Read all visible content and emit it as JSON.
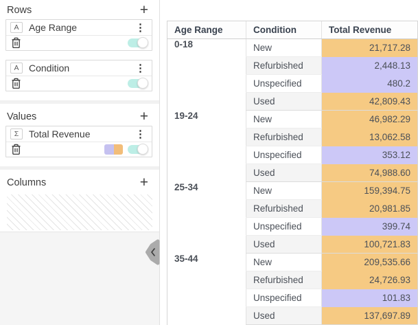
{
  "colors": {
    "orange": "#f6ca83",
    "purple": "#ccc8f7",
    "swatch_purple": "#c5c1f0",
    "swatch_orange": "#f2bd79",
    "toggle_on": "#bdeee6"
  },
  "sidebar": {
    "rows_label": "Rows",
    "values_label": "Values",
    "columns_label": "Columns",
    "add_icon": "+",
    "kebab_icon": "⋮",
    "fields": {
      "age_range": {
        "type_icon": "A",
        "label": "Age Range"
      },
      "condition": {
        "type_icon": "A",
        "label": "Condition"
      },
      "total_revenue": {
        "type_icon": "Σ",
        "label": "Total Revenue"
      }
    }
  },
  "table": {
    "headers": [
      "Age Range",
      "Condition",
      "Total Revenue"
    ],
    "groups": [
      {
        "age_range": "0-18",
        "rows": [
          {
            "condition": "New",
            "value": "21,717.28",
            "color": "orange"
          },
          {
            "condition": "Refurbished",
            "value": "2,448.13",
            "color": "purple"
          },
          {
            "condition": "Unspecified",
            "value": "480.2",
            "color": "purple"
          },
          {
            "condition": "Used",
            "value": "42,809.43",
            "color": "orange"
          }
        ]
      },
      {
        "age_range": "19-24",
        "rows": [
          {
            "condition": "New",
            "value": "46,982.29",
            "color": "orange"
          },
          {
            "condition": "Refurbished",
            "value": "13,062.58",
            "color": "orange"
          },
          {
            "condition": "Unspecified",
            "value": "353.12",
            "color": "purple"
          },
          {
            "condition": "Used",
            "value": "74,988.60",
            "color": "orange"
          }
        ]
      },
      {
        "age_range": "25-34",
        "rows": [
          {
            "condition": "New",
            "value": "159,394.75",
            "color": "orange"
          },
          {
            "condition": "Refurbished",
            "value": "20,981.85",
            "color": "orange"
          },
          {
            "condition": "Unspecified",
            "value": "399.74",
            "color": "purple"
          },
          {
            "condition": "Used",
            "value": "100,721.83",
            "color": "orange"
          }
        ]
      },
      {
        "age_range": "35-44",
        "rows": [
          {
            "condition": "New",
            "value": "209,535.66",
            "color": "orange"
          },
          {
            "condition": "Refurbished",
            "value": "24,726.93",
            "color": "orange"
          },
          {
            "condition": "Unspecified",
            "value": "101.83",
            "color": "purple"
          },
          {
            "condition": "Used",
            "value": "137,697.89",
            "color": "orange"
          }
        ]
      }
    ]
  }
}
